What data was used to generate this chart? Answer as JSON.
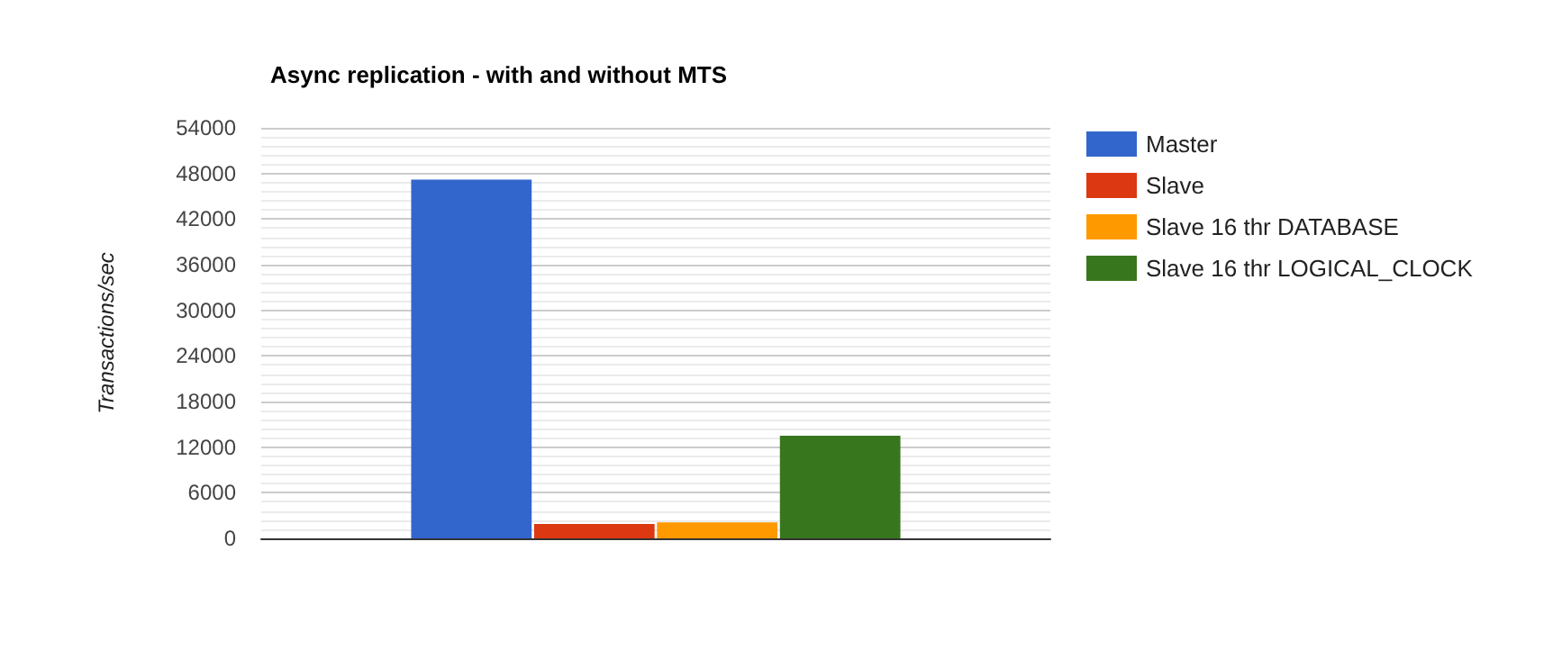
{
  "chart_data": {
    "type": "bar",
    "title": "Async replication - with and without MTS",
    "ylabel": "Transactions/sec",
    "categories": [
      null
    ],
    "series": [
      {
        "name": "Master",
        "color": "#3366cc",
        "values": [
          47200
        ]
      },
      {
        "name": "Slave",
        "color": "#dc3912",
        "values": [
          1900
        ]
      },
      {
        "name": "Slave 16 thr DATABASE",
        "color": "#ff9900",
        "values": [
          2100
        ]
      },
      {
        "name": "Slave 16 thr LOGICAL_CLOCK",
        "color": "#38761d",
        "values": [
          13500
        ]
      }
    ],
    "ylim": [
      0,
      54000
    ],
    "yticks": [
      0,
      6000,
      12000,
      18000,
      24000,
      30000,
      36000,
      42000,
      48000,
      54000
    ],
    "grid": "y",
    "legend": "right"
  }
}
